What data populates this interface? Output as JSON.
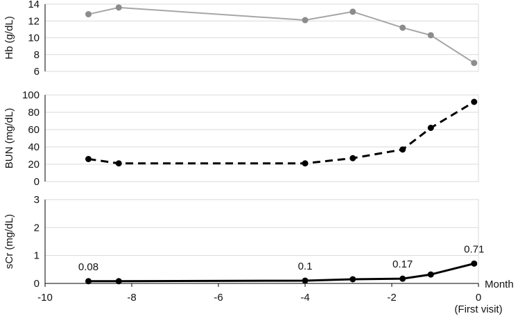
{
  "chart_data": [
    {
      "type": "line",
      "ylabel": "Hb (g/dL)",
      "ylim": [
        6,
        14
      ],
      "yticks": [
        6,
        8,
        10,
        12,
        14
      ],
      "x": [
        -9,
        -8.3,
        -4,
        -2.9,
        -1.75,
        -1.1,
        -0.1
      ],
      "series": [
        {
          "values": [
            12.8,
            13.6,
            12.1,
            13.1,
            11.2,
            10.3,
            7.0
          ],
          "color": "#a6a6a6",
          "marker_color": "#8c8c8c",
          "style": "solid"
        }
      ],
      "grid": true
    },
    {
      "type": "line",
      "ylabel": "BUN (mg/dL)",
      "ylim": [
        0,
        100
      ],
      "yticks": [
        0,
        20,
        40,
        60,
        80,
        100
      ],
      "x": [
        -9,
        -8.3,
        -4,
        -2.9,
        -1.75,
        -1.1,
        -0.1
      ],
      "series": [
        {
          "values": [
            26,
            21,
            21,
            27,
            37,
            62,
            92
          ],
          "color": "#000000",
          "style": "dashed"
        }
      ],
      "grid": true
    },
    {
      "type": "line",
      "ylabel": "sCr (mg/dL)",
      "ylim": [
        0,
        3
      ],
      "yticks": [
        0,
        1,
        2,
        3
      ],
      "xlim": [
        -10,
        0
      ],
      "xticks": [
        "-10",
        "-8",
        "-6",
        "-4",
        "-2",
        "0"
      ],
      "xlabel": "Month",
      "x_note": "(First visit)",
      "x": [
        -9,
        -8.3,
        -4,
        -2.9,
        -1.75,
        -1.1,
        -0.1
      ],
      "series": [
        {
          "values": [
            0.08,
            0.08,
            0.1,
            0.15,
            0.17,
            0.32,
            0.71
          ],
          "color": "#000000",
          "style": "solid"
        }
      ],
      "annotations": [
        {
          "text": "0.08",
          "x": -9
        },
        {
          "text": "0.1",
          "x": -4
        },
        {
          "text": "0.17",
          "x": -1.75
        },
        {
          "text": "0.71",
          "x": -0.1
        }
      ],
      "grid": true
    }
  ]
}
